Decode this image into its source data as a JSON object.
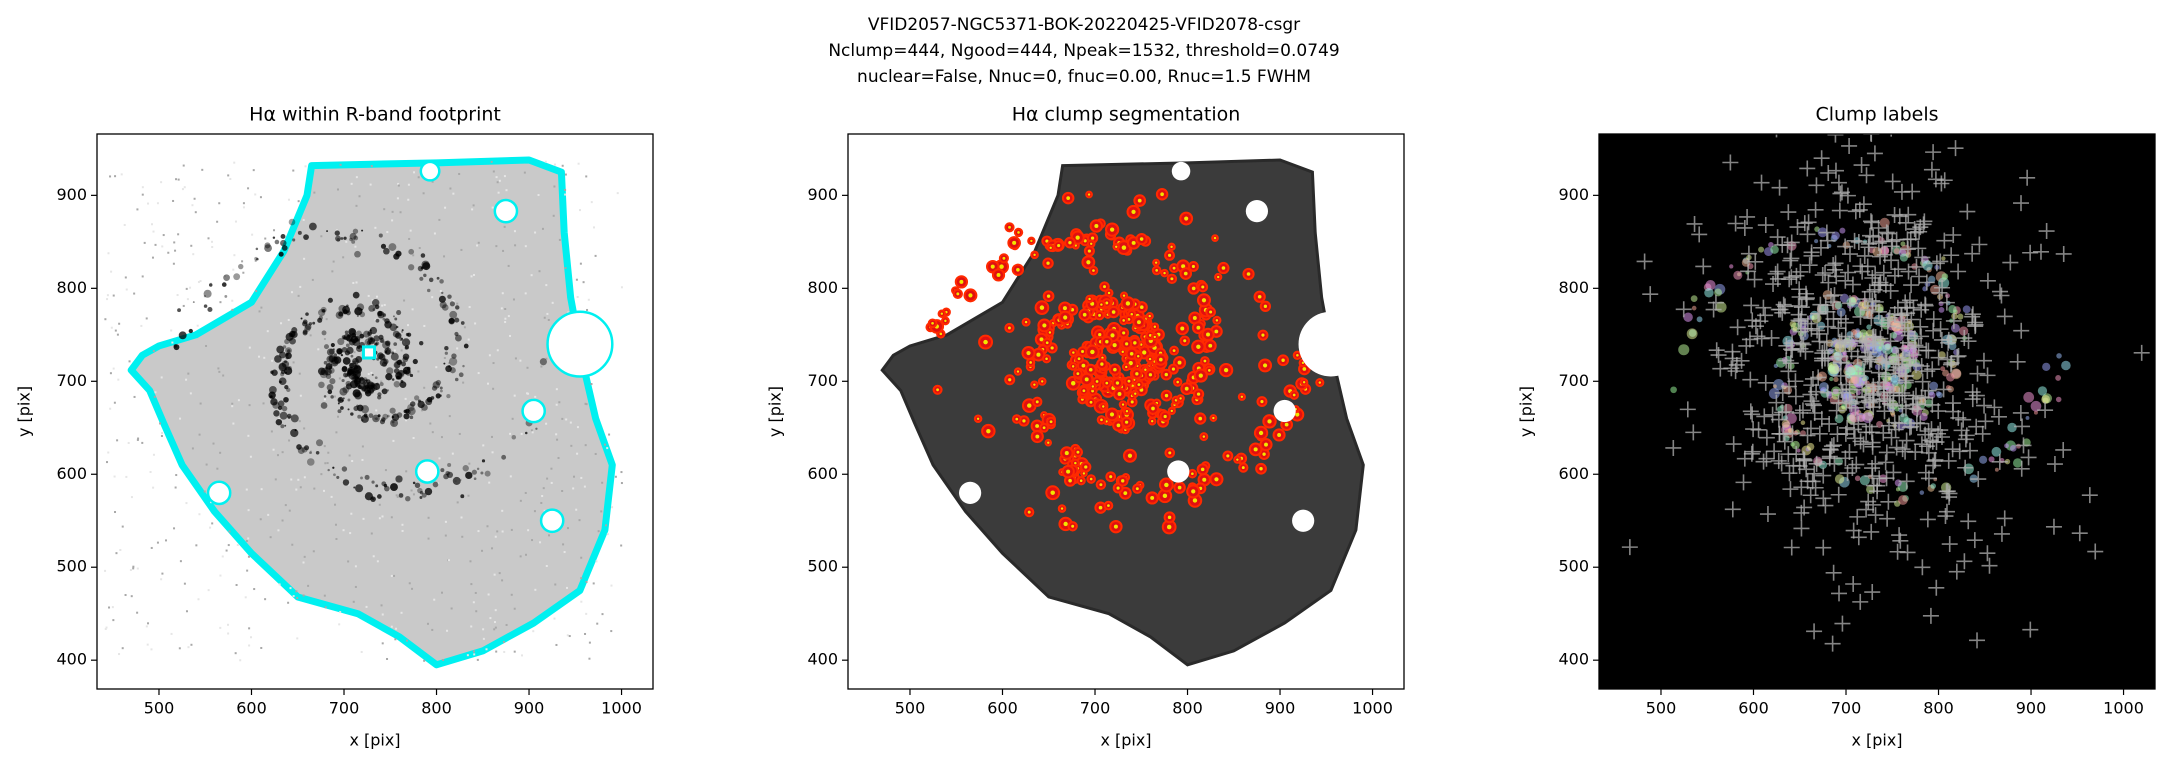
{
  "suptitle": [
    "VFID2057-NGC5371-BOK-20220425-VFID2078-csgr",
    "Nclump=444, Ngood=444, Npeak=1532, threshold=0.0749",
    "nuclear=False, Nnuc=0, fnuc=0.00, Rnuc=1.5 FWHM"
  ],
  "chart_data": [
    {
      "type": "image",
      "title": "Hα within R-band footprint",
      "xlabel": "x [pix]",
      "ylabel": "y [pix]",
      "xlim": [
        433,
        1034
      ],
      "ylim": [
        369,
        966
      ],
      "xticks": [
        500,
        600,
        700,
        800,
        900,
        1000
      ],
      "yticks": [
        400,
        500,
        600,
        700,
        800,
        900
      ]
    },
    {
      "type": "image",
      "title": "Hα clump segmentation",
      "xlabel": "x [pix]",
      "ylabel": "y [pix]",
      "xlim": [
        433,
        1034
      ],
      "ylim": [
        369,
        966
      ],
      "xticks": [
        500,
        600,
        700,
        800,
        900,
        1000
      ],
      "yticks": [
        400,
        500,
        600,
        700,
        800,
        900
      ]
    },
    {
      "type": "image",
      "title": "Clump labels",
      "xlabel": "x [pix]",
      "ylabel": "y [pix]",
      "xlim": [
        433,
        1034
      ],
      "ylim": [
        369,
        966
      ],
      "xticks": [
        500,
        600,
        700,
        800,
        900,
        1000
      ],
      "yticks": [
        400,
        500,
        600,
        700,
        800,
        900
      ]
    }
  ]
}
